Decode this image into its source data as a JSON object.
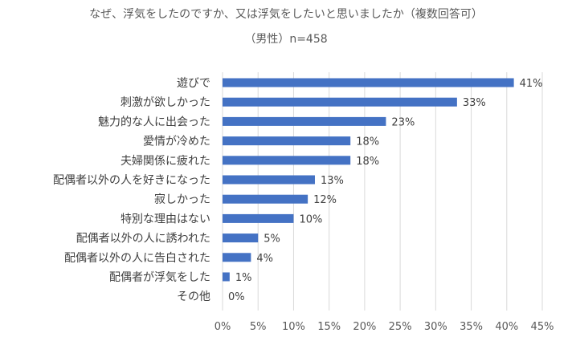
{
  "chart_data": {
    "type": "bar",
    "orientation": "horizontal",
    "title": "なぜ、浮気をしたのですか、又は浮気をしたいと思いましたか（複数回答可）",
    "subtitle": "（男性）n=458",
    "categories": [
      "遊びで",
      "刺激が欲しかった",
      "魅力的な人に出会った",
      "愛情が冷めた",
      "夫婦関係に疲れた",
      "配偶者以外の人を好きになった",
      "寂しかった",
      "特別な理由はない",
      "配偶者以外の人に誘われた",
      "配偶者以外の人に告白された",
      "配偶者が浮気をした",
      "その他"
    ],
    "values": [
      41,
      33,
      23,
      18,
      18,
      13,
      12,
      10,
      5,
      4,
      1,
      0
    ],
    "value_labels": [
      "41%",
      "33%",
      "23%",
      "18%",
      "18%",
      "13%",
      "12%",
      "10%",
      "5%",
      "4%",
      "1%",
      "0%"
    ],
    "xlim": [
      0,
      45
    ],
    "xticks": [
      0,
      5,
      10,
      15,
      20,
      25,
      30,
      35,
      40,
      45
    ],
    "xtick_labels": [
      "0%",
      "5%",
      "10%",
      "15%",
      "20%",
      "25%",
      "30%",
      "35%",
      "40%",
      "45%"
    ],
    "grid": true,
    "bar_color": "#4472c4",
    "grid_color": "#d9d9d9"
  }
}
